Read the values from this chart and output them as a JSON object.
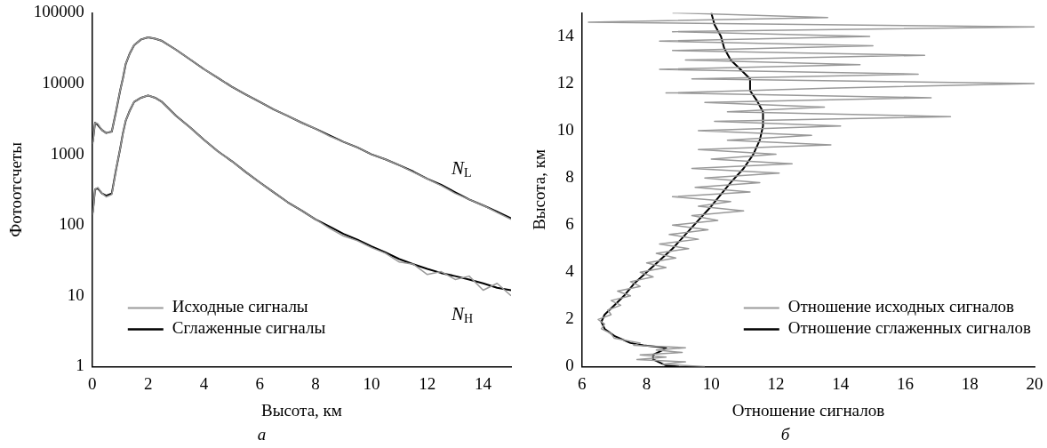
{
  "chart_data": [
    {
      "type": "line",
      "xlabel": "Высота, км",
      "ylabel": "Фотоотсчеты",
      "log": "y",
      "marker": "none",
      "legend": "bottom left",
      "xlim": [
        0,
        15
      ],
      "xticks": [
        0,
        2,
        4,
        6,
        8,
        10,
        12,
        14
      ],
      "ylim": [
        1,
        100000
      ],
      "yticks": [
        1,
        10,
        100,
        1000,
        10000,
        100000
      ],
      "x": [
        0.02,
        0.1,
        0.2,
        0.35,
        0.5,
        0.7,
        0.85,
        1.0,
        1.1,
        1.2,
        1.35,
        1.5,
        1.75,
        2.0,
        2.25,
        2.5,
        3.0,
        3.5,
        4.0,
        4.5,
        5.0,
        5.5,
        6.0,
        6.5,
        7.0,
        7.5,
        8.0,
        8.5,
        9.0,
        9.5,
        10.0,
        10.5,
        11.0,
        11.5,
        12.0,
        12.5,
        13.0,
        13.5,
        14.0,
        14.5,
        15.0
      ],
      "series": [
        {
          "name": "Исходные сигналы",
          "color": "#999999",
          "values": [
            1400,
            2800,
            2700,
            2200,
            2000,
            2100,
            4000,
            8000,
            12000,
            19000,
            27000,
            35000,
            42000,
            45000,
            43000,
            40000,
            30000,
            22000,
            16000,
            12000,
            9000,
            7000,
            5500,
            4300,
            3500,
            2800,
            2300,
            1800,
            1500,
            1250,
            1000,
            850,
            700,
            560,
            450,
            360,
            280,
            230,
            190,
            150,
            120
          ]
        },
        {
          "color": "#999999",
          "values": [
            140,
            320,
            340,
            280,
            250,
            270,
            600,
            1200,
            2000,
            3000,
            4200,
            5500,
            6300,
            6800,
            6300,
            5500,
            3500,
            2400,
            1600,
            1100,
            800,
            560,
            400,
            290,
            210,
            160,
            120,
            90,
            70,
            60,
            48,
            40,
            30,
            28,
            20,
            22,
            17,
            19,
            12,
            15,
            10
          ]
        },
        {
          "name": "Сглаженные сигналы",
          "color": "#000000",
          "values": [
            1500,
            2800,
            2600,
            2200,
            2000,
            2100,
            4000,
            8000,
            12000,
            19000,
            27000,
            35000,
            42000,
            45000,
            43000,
            40000,
            30000,
            22000,
            16000,
            12000,
            9000,
            7000,
            5500,
            4300,
            3500,
            2800,
            2300,
            1850,
            1500,
            1250,
            1000,
            850,
            700,
            570,
            450,
            370,
            290,
            230,
            190,
            155,
            125
          ]
        },
        {
          "color": "#000000",
          "values": [
            150,
            320,
            330,
            280,
            260,
            280,
            600,
            1200,
            2000,
            3000,
            4200,
            5500,
            6300,
            6800,
            6300,
            5500,
            3500,
            2400,
            1600,
            1100,
            800,
            560,
            400,
            290,
            210,
            160,
            120,
            95,
            75,
            62,
            50,
            41,
            33,
            28,
            24,
            21,
            19,
            17,
            15,
            13,
            12
          ]
        }
      ],
      "annotations": [
        "N$_{L}$",
        "N$_{H}$",
        "а"
      ]
    },
    {
      "type": "line",
      "xlabel": "Отношение сигналов",
      "ylabel": "Высота, км",
      "marker": "none",
      "legend": "bottom right",
      "xlim": [
        6,
        20
      ],
      "xticks": [
        6,
        8,
        10,
        12,
        14,
        16,
        18,
        20
      ],
      "ylim": [
        0,
        15
      ],
      "yticks": [
        0,
        2,
        4,
        6,
        8,
        10,
        12,
        14
      ],
      "series": [
        {
          "name": "Отношение исходных сигналов",
          "color": "#999999",
          "x": [
            9.8,
            8.5,
            9.2,
            7.7,
            8.6,
            7.8,
            9.1,
            8.3,
            9.2,
            7.6,
            7.8,
            7.0,
            6.9,
            6.6,
            6.7,
            6.5,
            6.9,
            6.8,
            7.2,
            6.9,
            7.5,
            7.1,
            7.8,
            7.5,
            8.2,
            7.8,
            8.6,
            8.0,
            8.9,
            8.3,
            9.3,
            8.4,
            9.6,
            8.7,
            9.9,
            8.8,
            10.2,
            9.4,
            11.0,
            9.6,
            10.6,
            8.8,
            11.2,
            9.5,
            11.5,
            9.8,
            12.1,
            9.4,
            12.5,
            10.0,
            12.0,
            9.6,
            13.7,
            10.5,
            13.1,
            9.6,
            14.0,
            10.1,
            17.4,
            10.5,
            13.5,
            9.8,
            16.8,
            8.6,
            13.6,
            20.0,
            9.4,
            16.4,
            8.4,
            14.6,
            9.2,
            16.6,
            8.8,
            15.0,
            8.4,
            14.9,
            8.8,
            20.0,
            6.2,
            13.6,
            8.8
          ],
          "values": [
            0,
            0.1,
            0.2,
            0.3,
            0.4,
            0.5,
            0.6,
            0.7,
            0.8,
            0.9,
            1.0,
            1.2,
            1.4,
            1.6,
            1.8,
            2.0,
            2.2,
            2.4,
            2.6,
            2.8,
            3.0,
            3.2,
            3.4,
            3.6,
            3.8,
            4.0,
            4.2,
            4.4,
            4.6,
            4.8,
            5.0,
            5.2,
            5.4,
            5.6,
            5.8,
            6.0,
            6.2,
            6.4,
            6.6,
            6.8,
            7.0,
            7.2,
            7.4,
            7.6,
            7.8,
            8.0,
            8.2,
            8.4,
            8.6,
            8.8,
            9.0,
            9.2,
            9.4,
            9.6,
            9.8,
            10.0,
            10.2,
            10.4,
            10.6,
            10.8,
            11.0,
            11.2,
            11.4,
            11.6,
            11.8,
            12.0,
            12.2,
            12.4,
            12.6,
            12.8,
            13.0,
            13.2,
            13.4,
            13.6,
            13.8,
            14.0,
            14.2,
            14.4,
            14.6,
            14.8,
            15.0
          ]
        },
        {
          "name": "Отношение сглаженных сигналов",
          "color": "#000000",
          "x": [
            9.0,
            8.6,
            8.2,
            8.2,
            8.5,
            8.6,
            7.9,
            7.5,
            7.0,
            6.7,
            6.6,
            6.7,
            7.0,
            7.3,
            7.6,
            8.0,
            8.4,
            8.8,
            9.2,
            9.6,
            10.0,
            10.3,
            10.6,
            11.0,
            11.3,
            11.5,
            11.6,
            11.6,
            11.4,
            11.2,
            11.2,
            10.9,
            10.6,
            10.4,
            10.3,
            10.1,
            10.0
          ],
          "values": [
            0,
            0.05,
            0.3,
            0.5,
            0.7,
            0.8,
            0.9,
            1.0,
            1.3,
            1.6,
            1.9,
            2.2,
            2.6,
            3.0,
            3.5,
            4.0,
            4.5,
            5.0,
            5.6,
            6.2,
            6.8,
            7.3,
            7.8,
            8.4,
            9.0,
            9.6,
            10.2,
            10.8,
            11.3,
            11.7,
            12.2,
            12.6,
            13.0,
            13.5,
            14.0,
            14.5,
            15.0
          ]
        }
      ],
      "annotations": [
        "б"
      ]
    }
  ]
}
